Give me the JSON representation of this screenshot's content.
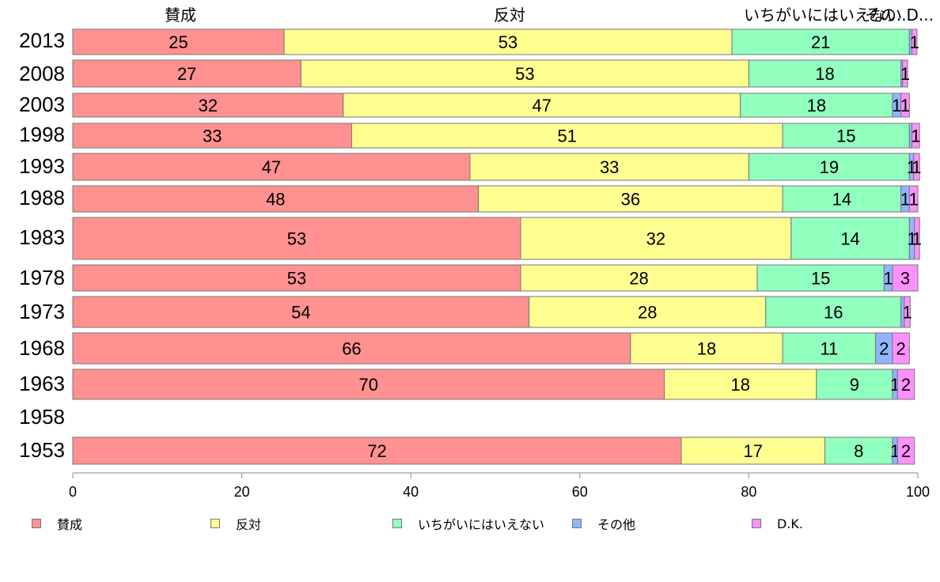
{
  "chart_data": {
    "type": "bar",
    "orientation": "horizontal",
    "stacked": true,
    "title": "",
    "xlabel": "",
    "ylabel": "",
    "xlim": [
      0,
      100
    ],
    "x_ticks": [
      "0",
      "20",
      "40",
      "60",
      "80",
      "100"
    ],
    "grid": false,
    "legend_position": "bottom",
    "top_labels": [
      "賛成",
      "反対",
      "いちがいにはいえない",
      "その他",
      "D.K."
    ],
    "categories": [
      "2013",
      "2008",
      "2003",
      "1998",
      "1993",
      "1988",
      "1983",
      "1978",
      "1973",
      "1968",
      "1963",
      "1958",
      "1953"
    ],
    "series": [
      {
        "name": "賛成",
        "color": "#ff9191",
        "values": [
          25,
          27,
          32,
          33,
          47,
          48,
          53,
          53,
          54,
          66,
          70,
          null,
          72
        ]
      },
      {
        "name": "反対",
        "color": "#ffff91",
        "values": [
          53,
          53,
          47,
          51,
          33,
          36,
          32,
          28,
          28,
          18,
          18,
          null,
          17
        ]
      },
      {
        "name": "いちがいにはいえない",
        "color": "#91ffbe",
        "values": [
          21,
          18,
          18,
          15,
          19,
          14,
          14,
          15,
          16,
          11,
          9,
          null,
          8
        ]
      },
      {
        "name": "その他",
        "color": "#91b4ff",
        "values": [
          0.3,
          0.2,
          1,
          0.3,
          0.5,
          1,
          0.6,
          1,
          0.4,
          2,
          0.6,
          null,
          0.6
        ]
      },
      {
        "name": "D.K.",
        "color": "#ff91ff",
        "values": [
          0.6,
          0.6,
          1,
          0.9,
          0.7,
          1,
          0.6,
          3,
          0.7,
          2,
          2,
          null,
          2
        ]
      }
    ],
    "data_labels": [
      [
        "25",
        "53",
        "21",
        "",
        "1"
      ],
      [
        "27",
        "53",
        "18",
        "",
        "1"
      ],
      [
        "32",
        "47",
        "18",
        "1",
        "1"
      ],
      [
        "33",
        "51",
        "15",
        "",
        "1"
      ],
      [
        "47",
        "33",
        "19",
        "1",
        "1"
      ],
      [
        "48",
        "36",
        "14",
        "1",
        "1"
      ],
      [
        "53",
        "32",
        "14",
        "1",
        "1"
      ],
      [
        "53",
        "28",
        "15",
        "1",
        "3"
      ],
      [
        "54",
        "28",
        "16",
        "",
        "1"
      ],
      [
        "66",
        "18",
        "11",
        "2",
        "2"
      ],
      [
        "70",
        "18",
        "9",
        "1",
        "2"
      ],
      [
        "",
        "",
        "",
        "",
        ""
      ],
      [
        "72",
        "17",
        "8",
        "1",
        "2"
      ]
    ]
  }
}
